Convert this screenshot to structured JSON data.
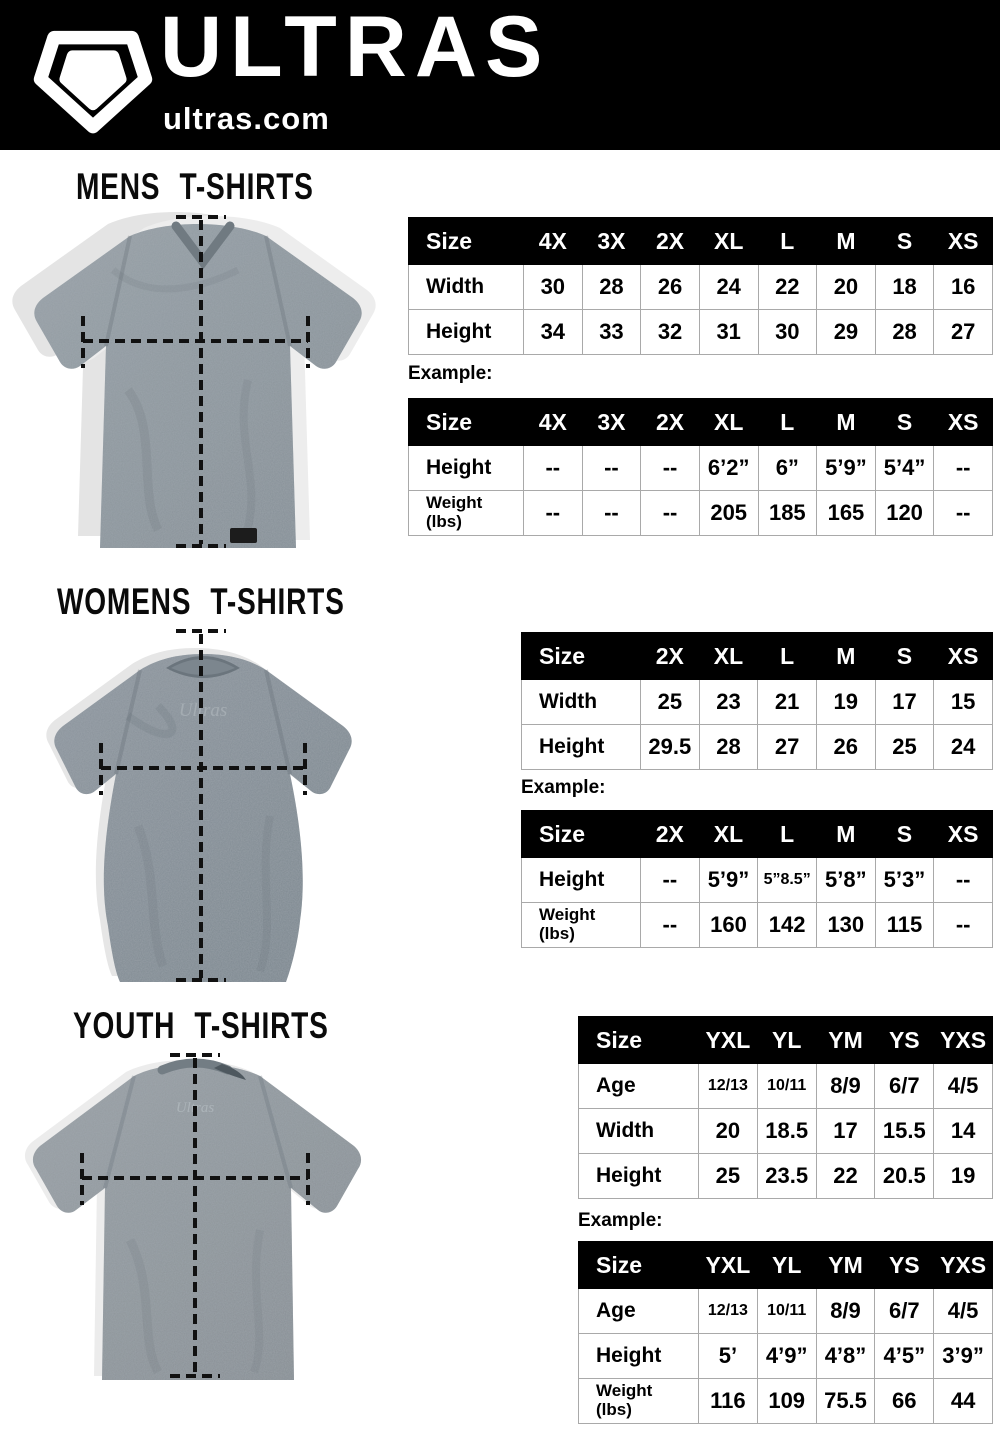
{
  "header": {
    "brand": "ULTRAS",
    "website": "ultras.com",
    "logo_icon": "pentagon-shield-icon",
    "background": "#000000",
    "text_color": "#ffffff"
  },
  "labels": {
    "example": "Example:"
  },
  "colors": {
    "table_header_bg": "#000000",
    "table_header_text": "#ffffff",
    "table_border": "#a9a9a9",
    "shirt_gray_mens": "#8b959b",
    "shirt_gray_womens": "#828c94",
    "shirt_gray_youth": "#8c9399",
    "measure_dash": "#111111"
  },
  "sections": [
    {
      "id": "mens",
      "title": "MENS T-SHIRTS",
      "size_table": {
        "header": [
          "Size",
          "4X",
          "3X",
          "2X",
          "XL",
          "L",
          "M",
          "S",
          "XS"
        ],
        "rows": [
          {
            "label": "Width",
            "values": [
              "30",
              "28",
              "26",
              "24",
              "22",
              "20",
              "18",
              "16"
            ]
          },
          {
            "label": "Height",
            "values": [
              "34",
              "33",
              "32",
              "31",
              "30",
              "29",
              "28",
              "27"
            ]
          }
        ]
      },
      "example_table": {
        "header": [
          "Size",
          "4X",
          "3X",
          "2X",
          "XL",
          "L",
          "M",
          "S",
          "XS"
        ],
        "rows": [
          {
            "label": "Height",
            "values": [
              "--",
              "--",
              "--",
              "6’2”",
              "6”",
              "5’9”",
              "5’4”",
              "--"
            ]
          },
          {
            "label": "Weight\n(lbs)",
            "values": [
              "--",
              "--",
              "--",
              "205",
              "185",
              "165",
              "120",
              "--"
            ]
          }
        ]
      }
    },
    {
      "id": "womens",
      "title": "WOMENS T-SHIRTS",
      "size_table": {
        "header": [
          "Size",
          "2X",
          "XL",
          "L",
          "M",
          "S",
          "XS"
        ],
        "rows": [
          {
            "label": "Width",
            "values": [
              "25",
              "23",
              "21",
              "19",
              "17",
              "15"
            ]
          },
          {
            "label": "Height",
            "values": [
              "29.5",
              "28",
              "27",
              "26",
              "25",
              "24"
            ]
          }
        ]
      },
      "example_table": {
        "header": [
          "Size",
          "2X",
          "XL",
          "L",
          "M",
          "S",
          "XS"
        ],
        "rows": [
          {
            "label": "Height",
            "values": [
              "--",
              "5’9”",
              "5”8.5”",
              "5’8”",
              "5’3”",
              "--"
            ]
          },
          {
            "label": "Weight\n(lbs)",
            "values": [
              "--",
              "160",
              "142",
              "130",
              "115",
              "--"
            ]
          }
        ]
      }
    },
    {
      "id": "youth",
      "title": "YOUTH T-SHIRTS",
      "size_table": {
        "header": [
          "Size",
          "YXL",
          "YL",
          "YM",
          "YS",
          "YXS"
        ],
        "rows": [
          {
            "label": "Age",
            "values": [
              "12/13",
              "10/11",
              "8/9",
              "6/7",
              "4/5"
            ]
          },
          {
            "label": "Width",
            "values": [
              "20",
              "18.5",
              "17",
              "15.5",
              "14"
            ]
          },
          {
            "label": "Height",
            "values": [
              "25",
              "23.5",
              "22",
              "20.5",
              "19"
            ]
          }
        ]
      },
      "example_table": {
        "header": [
          "Size",
          "YXL",
          "YL",
          "YM",
          "YS",
          "YXS"
        ],
        "rows": [
          {
            "label": "Age",
            "values": [
              "12/13",
              "10/11",
              "8/9",
              "6/7",
              "4/5"
            ]
          },
          {
            "label": "Height",
            "values": [
              "5’",
              "4’9”",
              "4’8”",
              "4’5”",
              "3’9”"
            ]
          },
          {
            "label": "Weight\n(lbs)",
            "values": [
              "116",
              "109",
              "75.5",
              "66",
              "44"
            ]
          }
        ]
      }
    }
  ]
}
